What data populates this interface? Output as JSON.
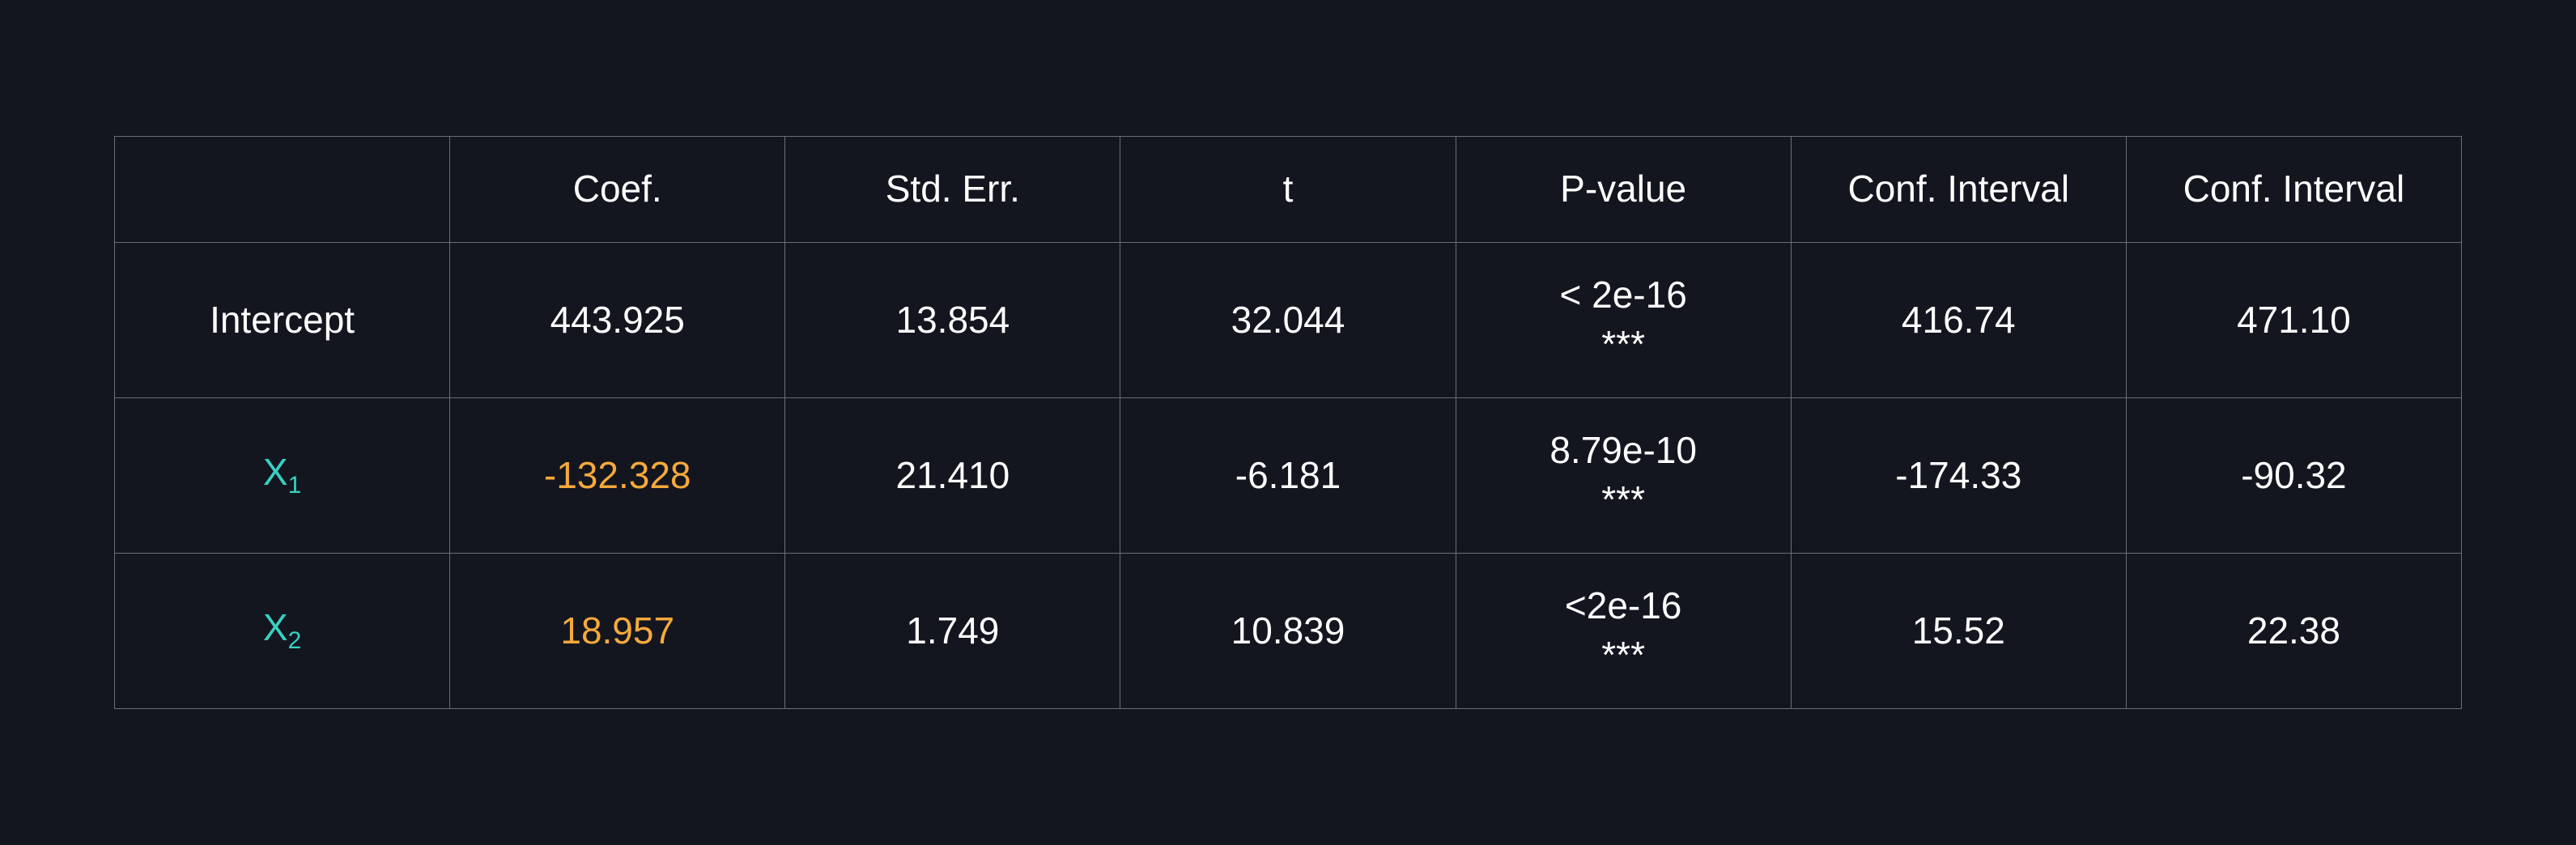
{
  "table": {
    "type": "table",
    "background_color": "#14161f",
    "border_color": "#6a6d78",
    "text_color": "#ffffff",
    "variable_color": "#39d0c3",
    "highlight_color": "#f6a93b",
    "header_fontsize_pt": 34,
    "cell_fontsize_pt": 34,
    "columns": [
      "",
      "Coef.",
      "Std. Err.",
      "t",
      "P-value",
      "Conf. Interval",
      "Conf. Interval"
    ],
    "rows": [
      {
        "label": "Intercept",
        "label_is_variable": false,
        "coef": "443.925",
        "coef_highlight": false,
        "stderr": "13.854",
        "t": "32.044",
        "pvalue": "< 2e-16",
        "sig": "***",
        "ci_low": "416.74",
        "ci_high": "471.10"
      },
      {
        "label": "X",
        "subscript": "1",
        "label_is_variable": true,
        "coef": "-132.328",
        "coef_highlight": true,
        "stderr": "21.410",
        "t": "-6.181",
        "pvalue": "8.79e-10",
        "sig": "***",
        "ci_low": "-174.33",
        "ci_high": "-90.32"
      },
      {
        "label": "X",
        "subscript": "2",
        "label_is_variable": true,
        "coef": "18.957",
        "coef_highlight": true,
        "stderr": "1.749",
        "t": "10.839",
        "pvalue": "<2e-16",
        "sig": "***",
        "ci_low": "15.52",
        "ci_high": "22.38"
      }
    ]
  }
}
